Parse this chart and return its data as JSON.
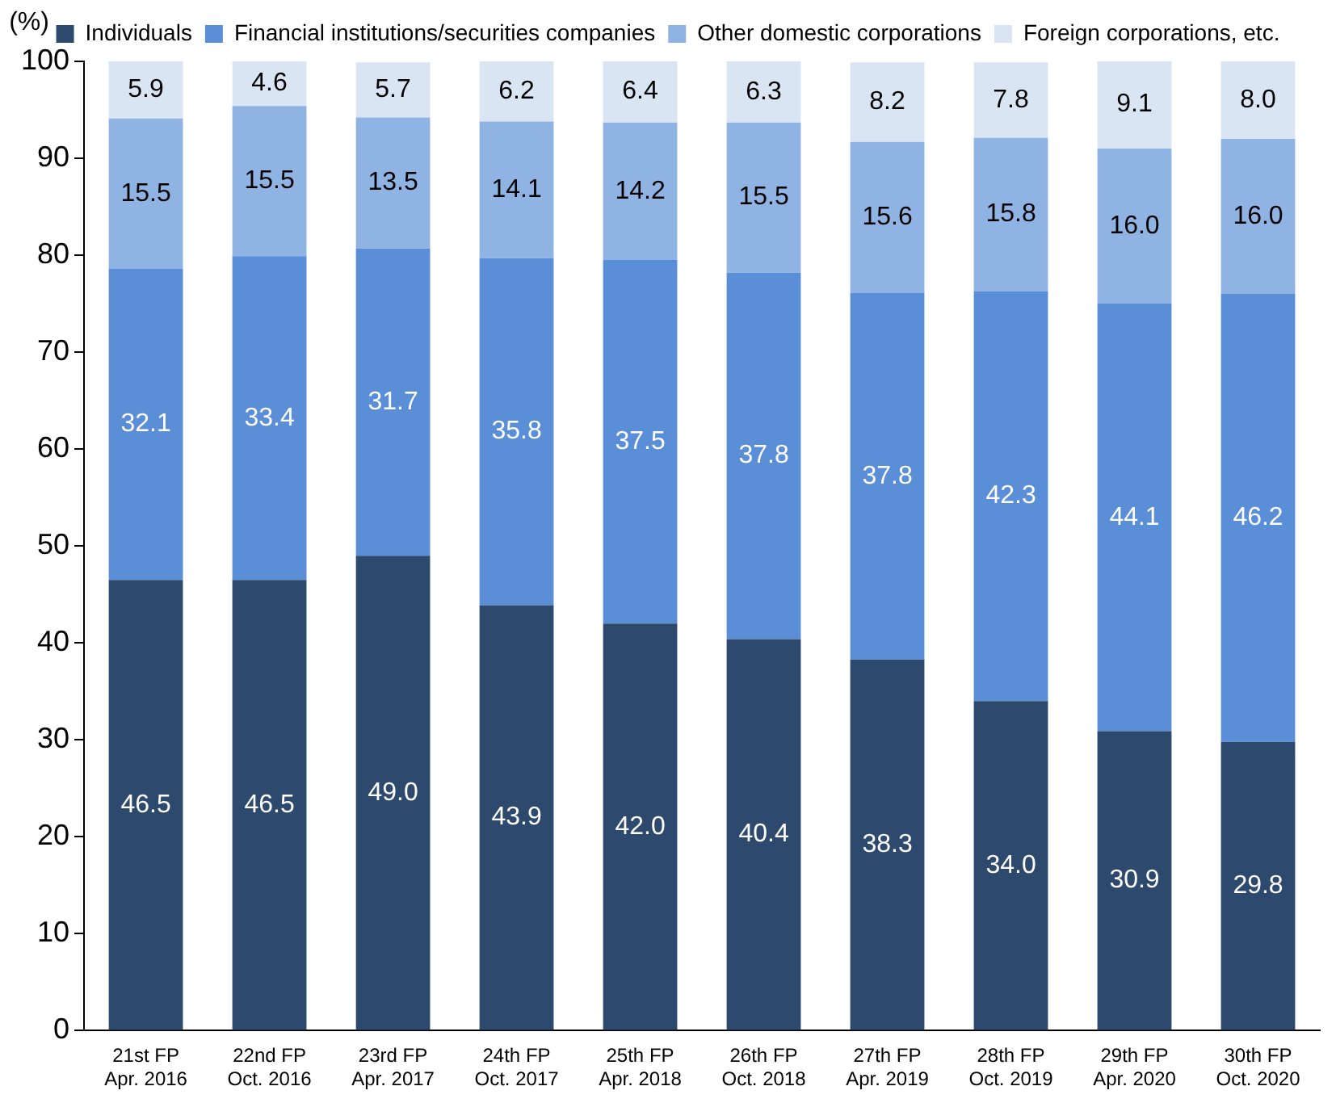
{
  "chart_data": {
    "type": "bar",
    "stacked": true,
    "ylabel": "(%)",
    "categories": [
      "21st FP\nApr. 2016",
      "22nd FP\nOct. 2016",
      "23rd FP\nApr. 2017",
      "24th FP\nOct. 2017",
      "25th FP\nApr. 2018",
      "26th FP\nOct. 2018",
      "27th FP\nApr. 2019",
      "28th FP\nOct. 2019",
      "29th FP\nApr. 2020",
      "30th FP\nOct. 2020"
    ],
    "series": [
      {
        "name": "Individuals",
        "color": "#2d4a6e",
        "values": [
          46.5,
          46.5,
          49.0,
          43.9,
          42.0,
          40.4,
          38.3,
          34.0,
          30.9,
          29.8
        ],
        "value_labels": [
          "46.5",
          "46.5",
          "49.0",
          "43.9",
          "42.0",
          "40.4",
          "38.3",
          "34.0",
          "30.9",
          "29.8"
        ]
      },
      {
        "name": "Financial institutions/securities companies",
        "color": "#5a8ed6",
        "values": [
          32.1,
          33.4,
          31.7,
          35.8,
          37.5,
          37.8,
          37.8,
          42.3,
          44.1,
          46.2
        ],
        "value_labels": [
          "32.1",
          "33.4",
          "31.7",
          "35.8",
          "37.5",
          "37.8",
          "37.8",
          "42.3",
          "44.1",
          "46.2"
        ]
      },
      {
        "name": "Other domestic corporations",
        "color": "#8fb3e3",
        "values": [
          15.5,
          15.5,
          13.5,
          14.1,
          14.2,
          15.5,
          15.6,
          15.8,
          16.0,
          16.0
        ],
        "value_labels": [
          "15.5",
          "15.5",
          "13.5",
          "14.1",
          "14.2",
          "15.5",
          "15.6",
          "15.8",
          "16.0",
          "16.0"
        ]
      },
      {
        "name": "Foreign corporations, etc.",
        "color": "#dae5f3",
        "values": [
          5.9,
          4.6,
          5.7,
          6.2,
          6.4,
          6.3,
          8.2,
          7.8,
          9.1,
          8.0
        ],
        "value_labels": [
          "5.9",
          "4.6",
          "5.7",
          "6.2",
          "6.4",
          "6.3",
          "8.2",
          "7.8",
          "9.1",
          "8.0"
        ]
      }
    ],
    "ylim": [
      0,
      100
    ],
    "yticks": [
      0,
      10,
      20,
      30,
      40,
      50,
      60,
      70,
      80,
      90,
      100
    ],
    "grid": false,
    "legend": "top"
  }
}
